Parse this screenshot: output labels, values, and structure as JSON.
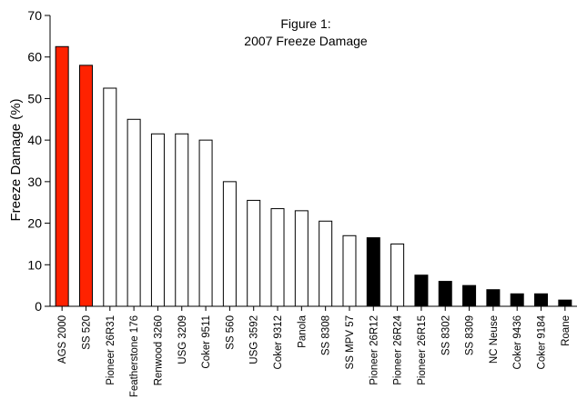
{
  "chart_data": {
    "type": "bar",
    "title": "Figure 1:",
    "subtitle": "2007 Freeze Damage",
    "xlabel": "",
    "ylabel": "Freeze Damage (%)",
    "ylim": [
      0,
      70
    ],
    "yticks": [
      "0",
      "10",
      "20",
      "30",
      "40",
      "50",
      "60",
      "70"
    ],
    "grid": false,
    "categories": [
      "AGS 2000",
      "SS 520",
      "Pioneer 26R31",
      "Featherstone 176",
      "Renwood 3260",
      "USG 3209",
      "Coker 9511",
      "SS 560",
      "USG 3592",
      "Coker 9312",
      "Panola",
      "SS 8308",
      "SS MPV 57",
      "Pioneer 26R12",
      "Pioneer 26R24",
      "Pioneer 26R15",
      "SS 8302",
      "SS 8309",
      "NC Neuse",
      "Coker 9436",
      "Coker 9184",
      "Roane"
    ],
    "values": [
      62.5,
      58,
      52.5,
      45,
      41.5,
      41.5,
      40,
      30,
      25.5,
      23.5,
      23,
      20.5,
      17,
      16.5,
      15,
      7.5,
      6,
      5,
      4,
      3,
      3,
      1.5
    ],
    "fills": [
      "#ff2200",
      "#ff2200",
      "#ffffff",
      "#ffffff",
      "#ffffff",
      "#ffffff",
      "#ffffff",
      "#ffffff",
      "#ffffff",
      "#ffffff",
      "#ffffff",
      "#ffffff",
      "#ffffff",
      "#000000",
      "#ffffff",
      "#000000",
      "#000000",
      "#000000",
      "#000000",
      "#000000",
      "#000000",
      "#000000"
    ]
  }
}
